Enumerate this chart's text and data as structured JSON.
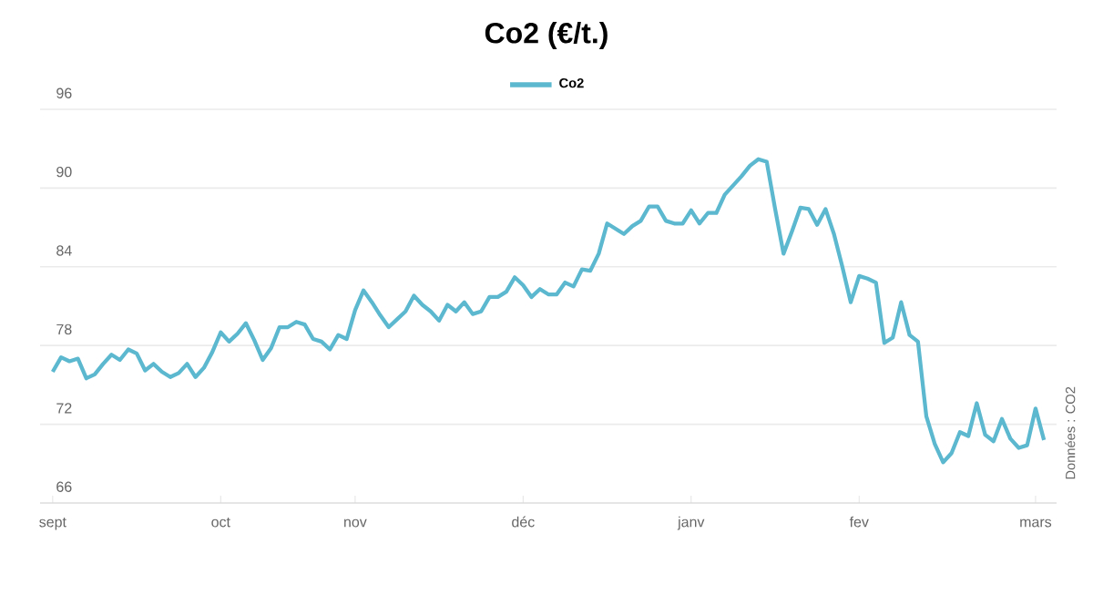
{
  "chart_data": {
    "type": "line",
    "title": "Co2 (€/t.)",
    "annotations": [
      "Données : CO2"
    ],
    "categories": [
      "sept",
      null,
      null,
      null,
      null,
      null,
      null,
      null,
      null,
      null,
      null,
      null,
      null,
      null,
      null,
      null,
      null,
      null,
      null,
      null,
      "oct",
      null,
      null,
      null,
      null,
      null,
      null,
      null,
      null,
      null,
      null,
      null,
      null,
      null,
      null,
      null,
      "nov",
      null,
      null,
      null,
      null,
      null,
      null,
      null,
      null,
      null,
      null,
      null,
      null,
      null,
      null,
      null,
      null,
      null,
      null,
      null,
      "déc",
      null,
      null,
      null,
      null,
      null,
      null,
      null,
      null,
      null,
      null,
      null,
      null,
      null,
      null,
      null,
      null,
      null,
      null,
      null,
      "janv",
      null,
      null,
      null,
      null,
      null,
      null,
      null,
      null,
      null,
      null,
      null,
      null,
      null,
      null,
      null,
      null,
      null,
      null,
      null,
      "fev",
      null,
      null,
      null,
      null,
      null,
      null,
      null,
      null,
      null,
      null,
      null,
      null,
      null,
      null,
      null,
      null,
      null,
      null,
      null,
      null,
      "mars",
      null
    ],
    "series": [
      {
        "name": "Co2",
        "color": "#5bb8cf",
        "values": [
          76.0,
          77.1,
          76.8,
          77.0,
          75.5,
          75.8,
          76.6,
          77.3,
          76.9,
          77.7,
          77.4,
          76.1,
          76.6,
          76.0,
          75.6,
          75.9,
          76.6,
          75.6,
          76.3,
          77.5,
          79.0,
          78.3,
          78.9,
          79.7,
          78.4,
          76.9,
          77.8,
          79.4,
          79.4,
          79.8,
          79.6,
          78.5,
          78.3,
          77.7,
          78.8,
          78.5,
          80.7,
          82.2,
          81.3,
          80.3,
          79.4,
          80.0,
          80.6,
          81.8,
          81.1,
          80.6,
          79.9,
          81.1,
          80.6,
          81.3,
          80.4,
          80.6,
          81.7,
          81.7,
          82.1,
          83.2,
          82.6,
          81.7,
          82.3,
          81.9,
          81.9,
          82.8,
          82.5,
          83.8,
          83.7,
          85.0,
          87.3,
          86.9,
          86.5,
          87.1,
          87.5,
          88.6,
          88.6,
          87.5,
          87.3,
          87.3,
          88.3,
          87.3,
          88.1,
          88.1,
          89.5,
          90.2,
          90.9,
          91.7,
          92.2,
          92.0,
          88.4,
          85.0,
          86.7,
          88.5,
          88.4,
          87.2,
          88.4,
          86.5,
          84.0,
          81.3,
          83.3,
          83.1,
          82.8,
          78.2,
          78.6,
          81.3,
          78.8,
          78.3,
          72.6,
          70.5,
          69.1,
          69.8,
          71.4,
          71.1,
          73.6,
          71.2,
          70.7,
          72.4,
          70.9,
          70.2,
          70.4,
          73.2,
          70.8
        ]
      }
    ],
    "ylim": [
      66,
      96
    ],
    "yticks": [
      66,
      72,
      78,
      84,
      90,
      96
    ],
    "grid": "y",
    "legend": "top",
    "marker": "none",
    "line_style": "solid"
  }
}
